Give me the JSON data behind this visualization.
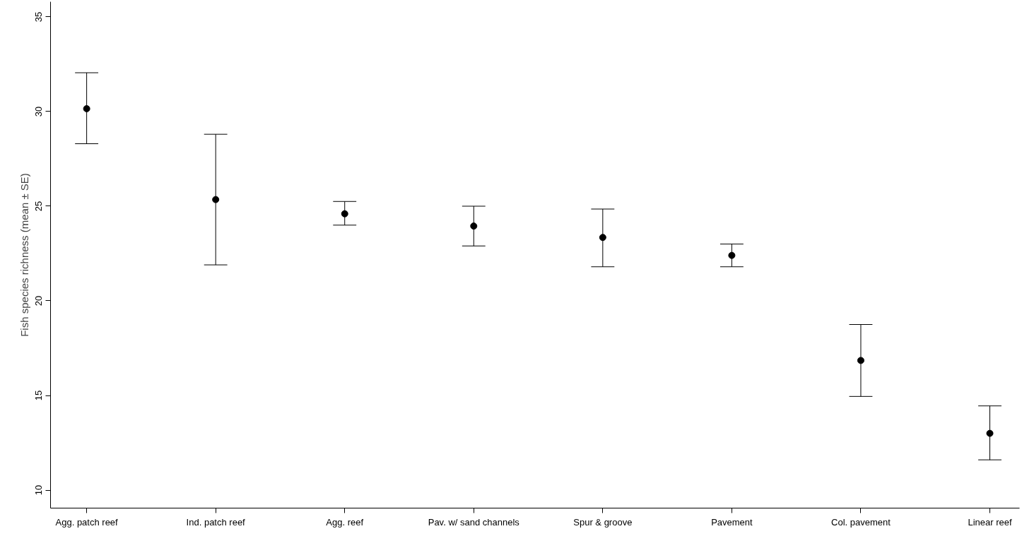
{
  "chart_data": {
    "type": "scatter",
    "ylabel": "Fish species richness (mean ± SE)",
    "categories": [
      "Agg. patch reef",
      "Ind. patch reef",
      "Agg. reef",
      "Pav. w/ sand channels",
      "Spur & groove",
      "Pavement",
      "Col. pavement",
      "Linear reef"
    ],
    "values": [
      30.15,
      25.35,
      24.6,
      23.95,
      23.35,
      22.4,
      16.85,
      13.0
    ],
    "errors": [
      [
        28.3,
        32.05
      ],
      [
        21.9,
        28.8
      ],
      [
        24.0,
        25.25
      ],
      [
        22.9,
        25.0
      ],
      [
        21.8,
        24.85
      ],
      [
        21.8,
        23.0
      ],
      [
        14.95,
        18.75
      ],
      [
        11.6,
        14.45
      ]
    ],
    "color": "#000000",
    "marker": "circle",
    "grid": false,
    "ylim": [
      9.05,
      35.8
    ],
    "yticks": [
      10,
      15,
      20,
      25,
      30,
      35
    ]
  }
}
